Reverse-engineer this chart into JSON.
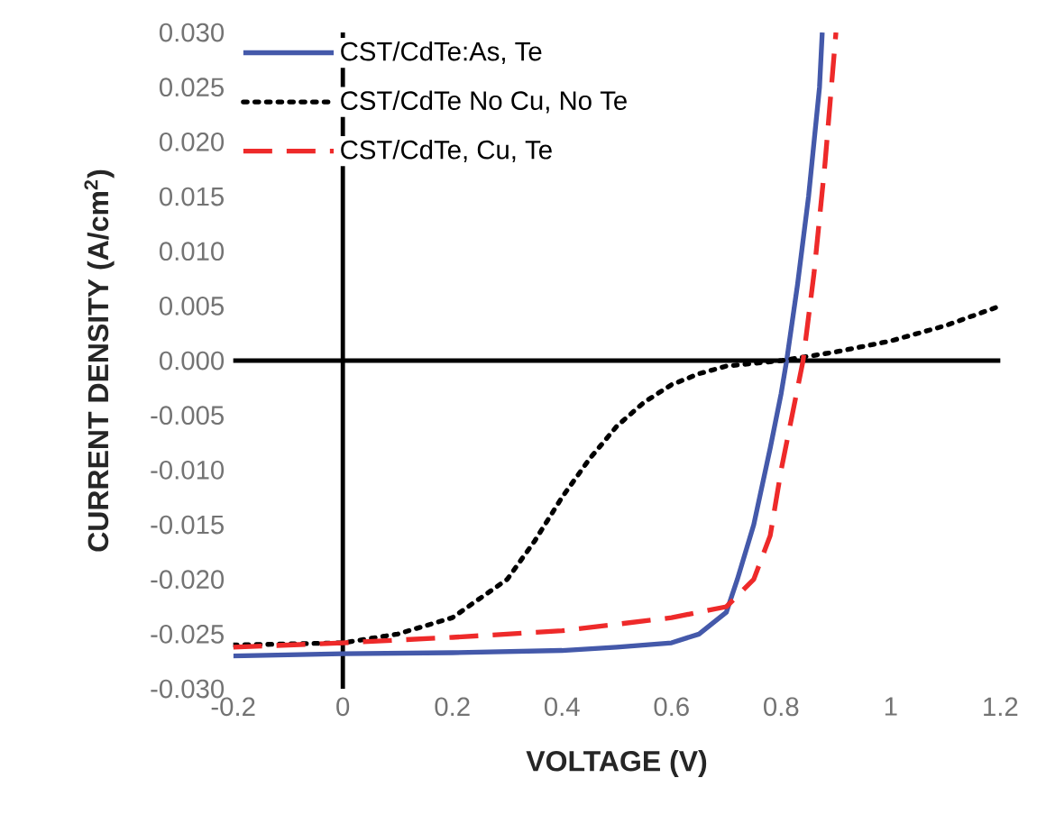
{
  "chart_data": {
    "type": "line",
    "xlabel": "VOLTAGE (V)",
    "ylabel": "CURRENT DENSITY (A/cm$^{2}$)",
    "xlim": [
      -0.2,
      1.2
    ],
    "xticks": [
      -0.2,
      0,
      0.2,
      0.4,
      0.6,
      0.8,
      1,
      1.2
    ],
    "ylim": [
      -0.03,
      0.03
    ],
    "yticks": [
      {
        "value": -0.03,
        "label": "-0.030"
      },
      {
        "value": -0.025,
        "label": "-0.025"
      },
      {
        "value": -0.02,
        "label": "-0.020"
      },
      {
        "value": -0.015,
        "label": "-0.015"
      },
      {
        "value": -0.01,
        "label": "-0.010"
      },
      {
        "value": -0.005,
        "label": "-0.005"
      },
      {
        "value": 0,
        "label": "0.000"
      },
      {
        "value": 0.005,
        "label": "0.005"
      },
      {
        "value": 0.01,
        "label": "0.010"
      },
      {
        "value": 0.015,
        "label": "0.015"
      },
      {
        "value": 0.02,
        "label": "0.020"
      },
      {
        "value": 0.025,
        "label": "0.025"
      },
      {
        "value": 0.03,
        "label": "0.030"
      }
    ],
    "legend": "top left",
    "marker": "none",
    "series": [
      {
        "name": "CST/CdTe:As, Te",
        "color": "#4459aa",
        "line_style": "solid",
        "x": [
          -0.2,
          0,
          0.2,
          0.4,
          0.5,
          0.6,
          0.65,
          0.7,
          0.72,
          0.75,
          0.78,
          0.8,
          0.81,
          0.83,
          0.85,
          0.87,
          0.875
        ],
        "values": [
          -0.027,
          -0.0268,
          -0.0267,
          -0.0265,
          -0.0262,
          -0.0258,
          -0.025,
          -0.023,
          -0.02,
          -0.015,
          -0.008,
          -0.003,
          0,
          0.007,
          0.015,
          0.025,
          0.03
        ]
      },
      {
        "name": "CST/CdTe No Cu, No Te",
        "color": "#000000",
        "line_style": "dotted",
        "x": [
          -0.2,
          0,
          0.1,
          0.2,
          0.3,
          0.35,
          0.4,
          0.45,
          0.5,
          0.55,
          0.6,
          0.65,
          0.7,
          0.8,
          0.9,
          1.0,
          1.1,
          1.2
        ],
        "values": [
          -0.026,
          -0.0258,
          -0.025,
          -0.0235,
          -0.02,
          -0.0165,
          -0.0125,
          -0.009,
          -0.006,
          -0.0038,
          -0.0022,
          -0.0012,
          -0.0005,
          0,
          0.0008,
          0.0018,
          0.0032,
          0.005
        ]
      },
      {
        "name": "CST/CdTe, Cu, Te",
        "color": "#ee2a2a",
        "line_style": "dashed",
        "x": [
          -0.2,
          0,
          0.2,
          0.4,
          0.6,
          0.7,
          0.75,
          0.78,
          0.8,
          0.82,
          0.84,
          0.86,
          0.88,
          0.9
        ],
        "values": [
          -0.0262,
          -0.0258,
          -0.0253,
          -0.0247,
          -0.0235,
          -0.0225,
          -0.02,
          -0.016,
          -0.01,
          -0.005,
          0,
          0.008,
          0.018,
          0.03
        ]
      }
    ]
  }
}
